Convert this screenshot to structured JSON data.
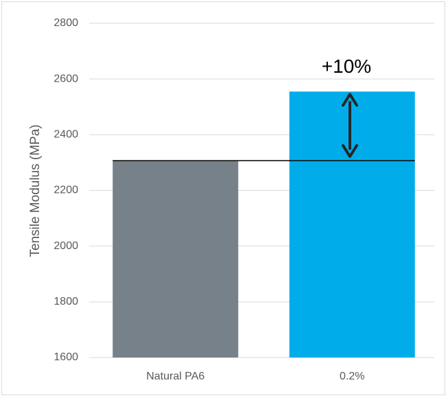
{
  "chart_data": {
    "type": "bar",
    "categories": [
      "Natural PA6",
      "0.2%"
    ],
    "values": [
      2307,
      2555
    ],
    "ylabel": "Tensile Modulus (MPa)",
    "xlabel": "",
    "ylim": [
      1600,
      2800
    ],
    "yticks": [
      1600,
      1800,
      2000,
      2200,
      2400,
      2600,
      2800
    ],
    "grid": true,
    "colors": [
      "#768189",
      "#00adea"
    ],
    "reference_line_value": 2307,
    "annotation": "+10%",
    "arrow_color": "#262626"
  }
}
